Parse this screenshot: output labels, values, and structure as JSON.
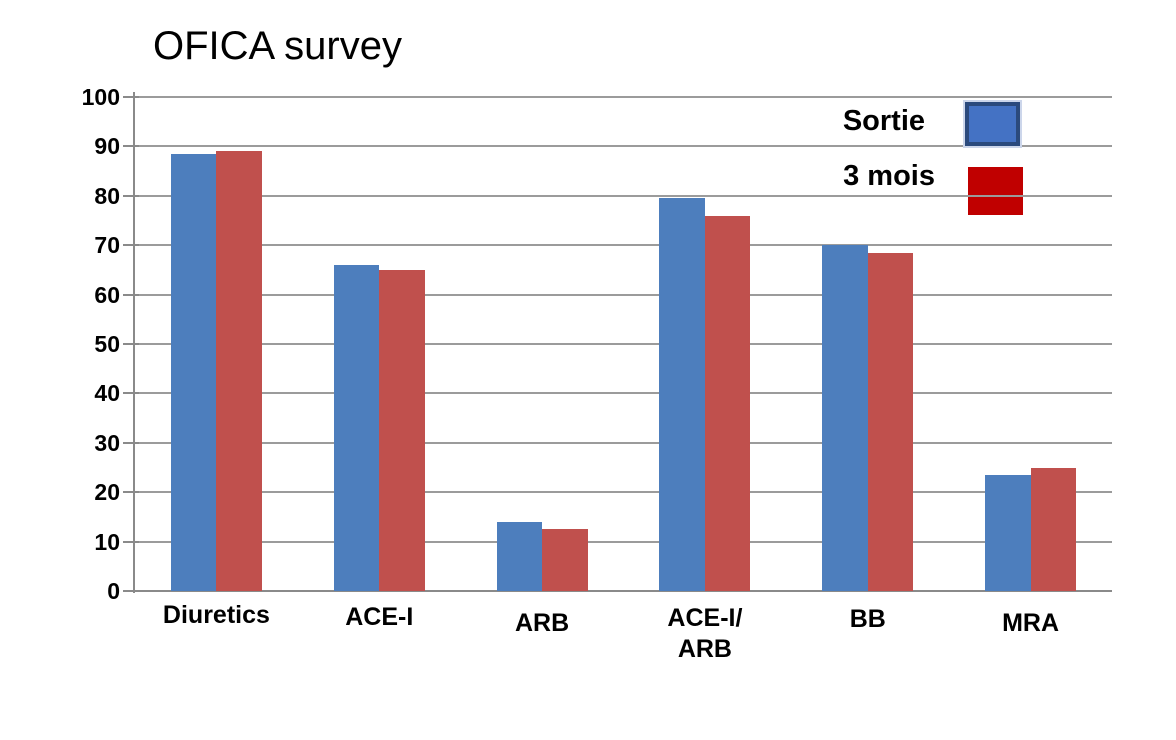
{
  "chart_data": {
    "type": "bar",
    "title": "OFICA survey",
    "categories": [
      "Diuretics",
      "ACE-I",
      "ARB",
      "ACE-I/\nARB",
      "BB",
      "MRA"
    ],
    "series": [
      {
        "name": "Sortie",
        "color": "#4d7ebd",
        "values": [
          88.5,
          66,
          14,
          79.5,
          70,
          23.5
        ]
      },
      {
        "name": "3 mois",
        "color": "#c0504d",
        "values": [
          89,
          65,
          12.5,
          76,
          68.5,
          25
        ]
      }
    ],
    "ylim": [
      0,
      100
    ],
    "yticks": [
      0,
      10,
      20,
      30,
      40,
      50,
      60,
      70,
      80,
      90,
      100
    ],
    "grid": "horizontal",
    "gridline_color": "#9b9b9b",
    "axis_color": "#8a8a8a",
    "legend_position": "top-right-inside",
    "legend_swatch_colors": {
      "sortie": "#4472c4",
      "trois_mois": "#c00000"
    },
    "background_color": "#ffffff"
  }
}
